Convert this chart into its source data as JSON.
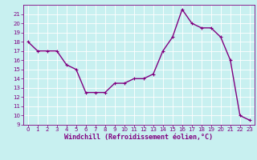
{
  "x": [
    0,
    1,
    2,
    3,
    4,
    5,
    6,
    7,
    8,
    9,
    10,
    11,
    12,
    13,
    14,
    15,
    16,
    17,
    18,
    19,
    20,
    21,
    22,
    23
  ],
  "y": [
    18,
    17,
    17,
    17,
    15.5,
    15,
    12.5,
    12.5,
    12.5,
    13.5,
    13.5,
    14,
    14,
    14.5,
    17,
    18.5,
    21.5,
    20,
    19.5,
    19.5,
    18.5,
    16,
    10,
    9.5
  ],
  "line_color": "#800080",
  "marker": "+",
  "bg_color": "#c8f0f0",
  "grid_color": "#ffffff",
  "xlabel": "Windchill (Refroidissement éolien,°C)",
  "xlabel_color": "#800080",
  "tick_color": "#800080",
  "ylim": [
    9,
    22
  ],
  "yticks": [
    9,
    10,
    11,
    12,
    13,
    14,
    15,
    16,
    17,
    18,
    19,
    20,
    21
  ],
  "xlim": [
    -0.5,
    23.5
  ],
  "xticks": [
    0,
    1,
    2,
    3,
    4,
    5,
    6,
    7,
    8,
    9,
    10,
    11,
    12,
    13,
    14,
    15,
    16,
    17,
    18,
    19,
    20,
    21,
    22,
    23
  ],
  "linewidth": 1.0,
  "markersize": 3,
  "tick_fontsize": 5,
  "xlabel_fontsize": 6
}
